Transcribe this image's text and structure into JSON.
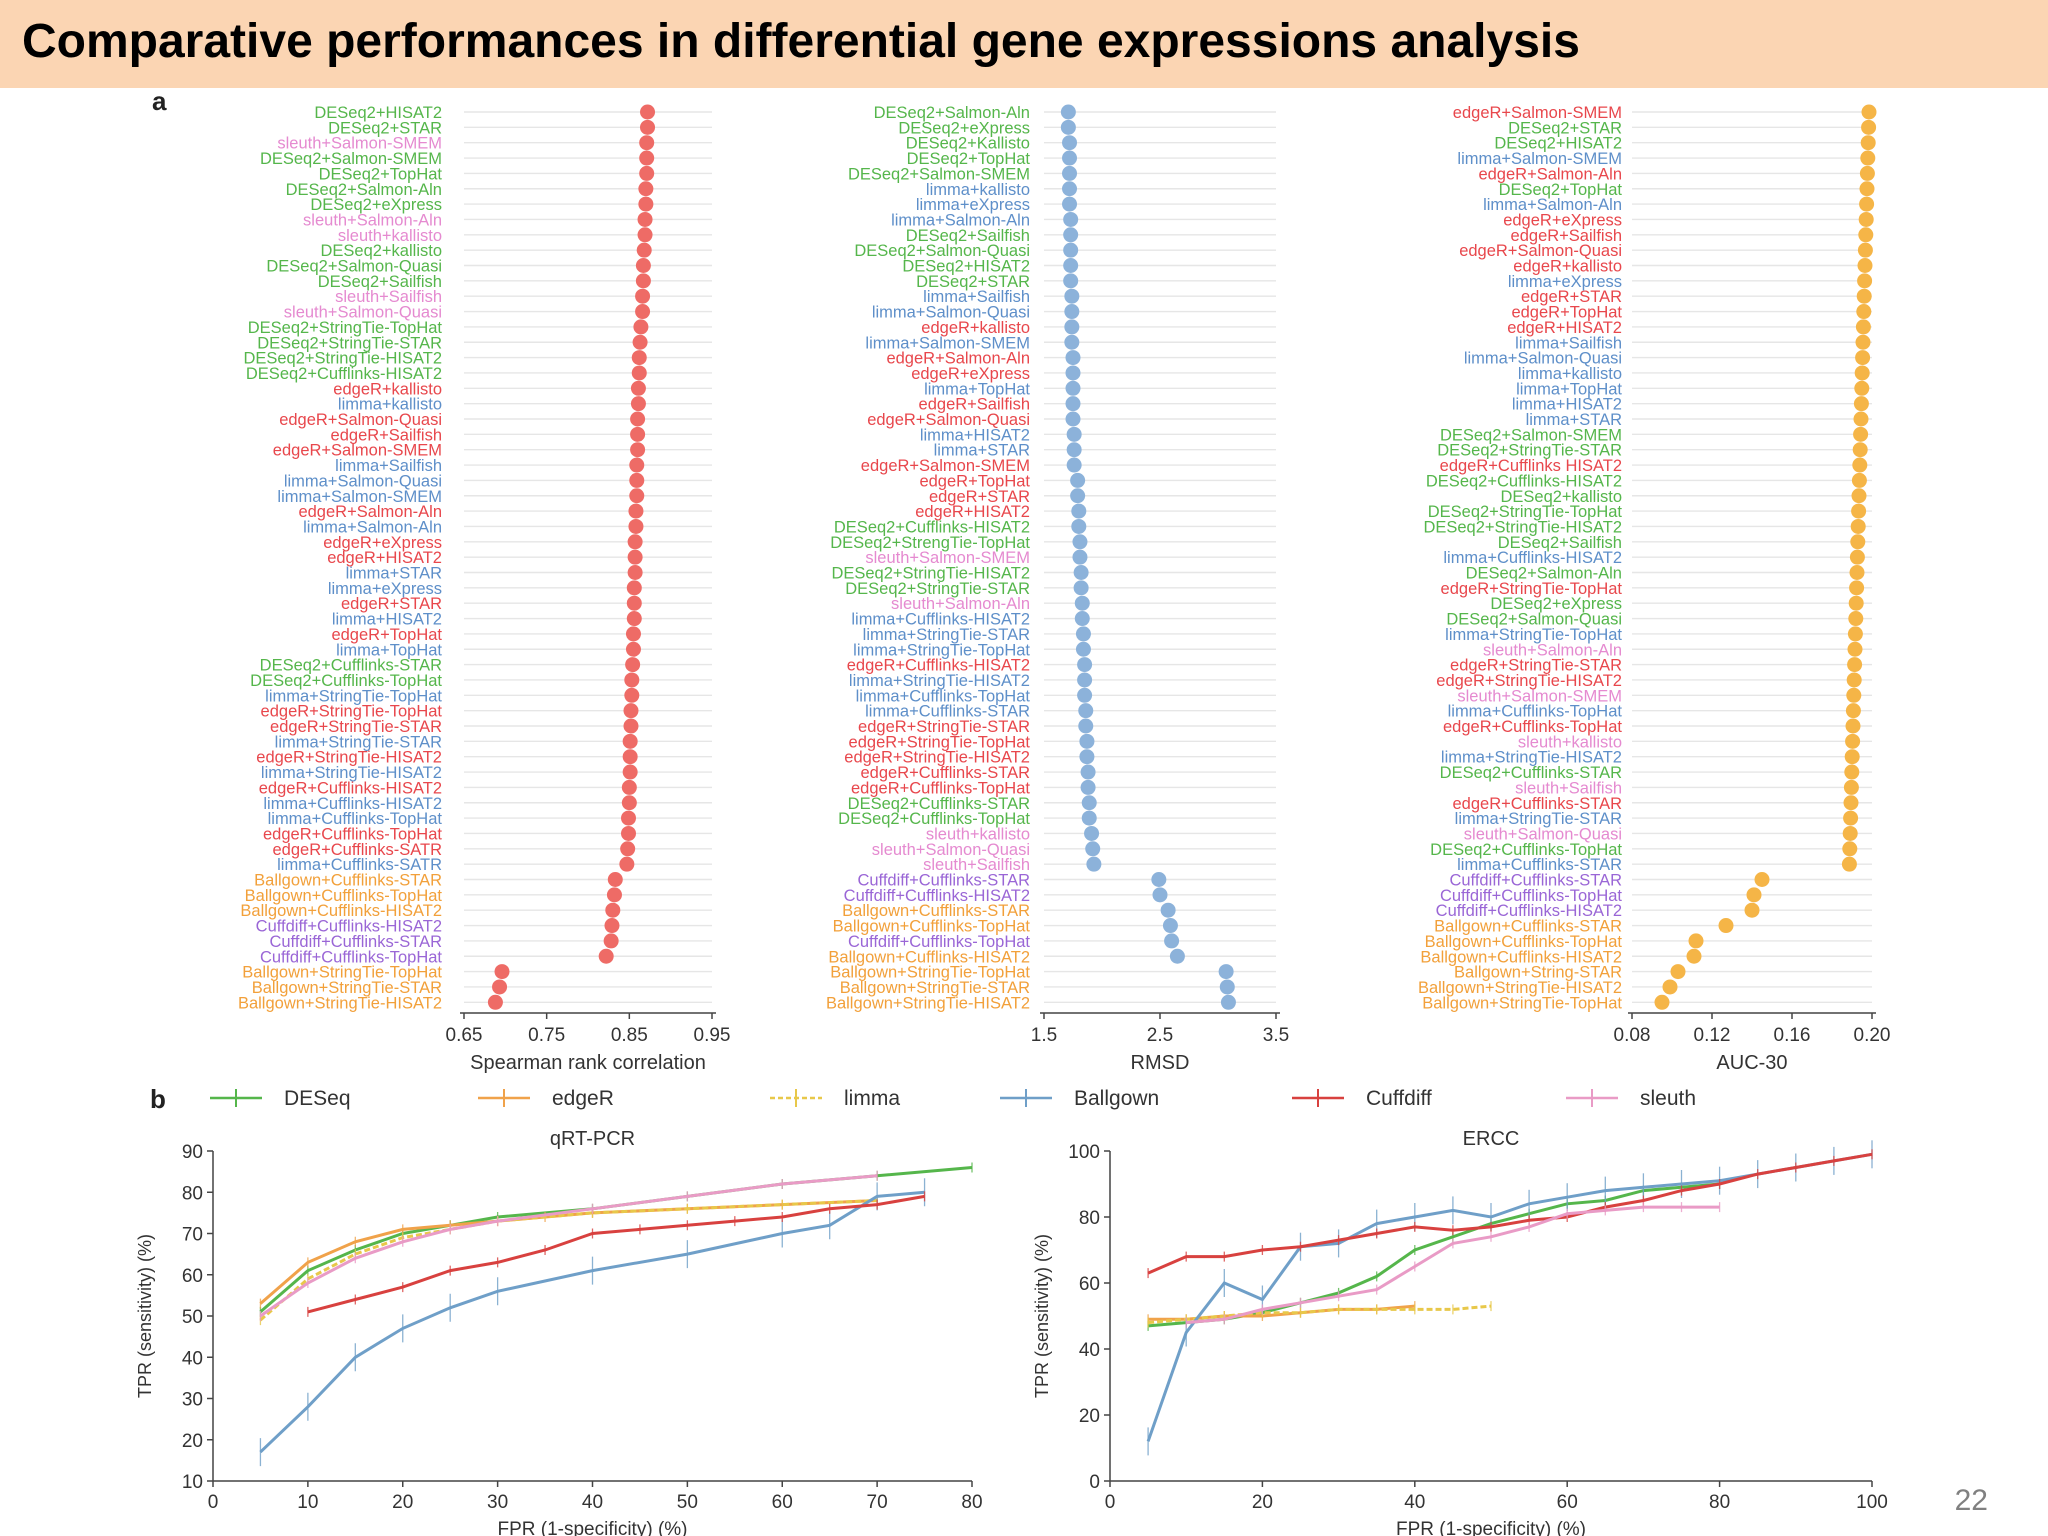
{
  "slide": {
    "title": "Comparative performances in differential gene expressions analysis",
    "page_number": "22"
  },
  "colors": {
    "DESeq": "#55b64b",
    "edgeR": "#e8474c",
    "limma": "#5e8fc9",
    "sleuth": "#e58ad0",
    "Ballgown": "#f2a03a",
    "Cuffdiff": "#9a66d6",
    "dot_spearman": "#ee6b66",
    "dot_rmsd": "#8cb2da",
    "dot_auc": "#f5b547"
  },
  "chart_data": [
    {
      "type": "scatter",
      "panel": "a",
      "xlabel": "Spearman rank correlation",
      "xlim": [
        0.65,
        0.95
      ],
      "xticks": [
        "0.65",
        "0.75",
        "0.85",
        "0.95"
      ],
      "labels": [
        "DESeq2+HISAT2",
        "DESeq2+STAR",
        "sleuth+Salmon-SMEM",
        "DESeq2+Salmon-SMEM",
        "DESeq2+TopHat",
        "DESeq2+Salmon-Aln",
        "DESeq2+eXpress",
        "sleuth+Salmon-Aln",
        "sleuth+kallisto",
        "DESeq2+kallisto",
        "DESeq2+Salmon-Quasi",
        "DESeq2+Sailfish",
        "sleuth+Sailfish",
        "sleuth+Salmon-Quasi",
        "DESeq2+StringTie-TopHat",
        "DESeq2+StringTie-STAR",
        "DESeq2+StringTie-HISAT2",
        "DESeq2+Cufflinks-HISAT2",
        "edgeR+kallisto",
        "limma+kallisto",
        "edgeR+Salmon-Quasi",
        "edgeR+Sailfish",
        "edgeR+Salmon-SMEM",
        "limma+Sailfish",
        "limma+Salmon-Quasi",
        "limma+Salmon-SMEM",
        "edgeR+Salmon-Aln",
        "limma+Salmon-Aln",
        "edgeR+eXpress",
        "edgeR+HISAT2",
        "limma+STAR",
        "limma+eXpress",
        "edgeR+STAR",
        "limma+HISAT2",
        "edgeR+TopHat",
        "limma+TopHat",
        "DESeq2+Cufflinks-STAR",
        "DESeq2+Cufflinks-TopHat",
        "limma+StringTie-TopHat",
        "edgeR+StringTie-TopHat",
        "edgeR+StringTie-STAR",
        "limma+StringTie-STAR",
        "edgeR+StringTie-HISAT2",
        "limma+StringTie-HISAT2",
        "edgeR+Cufflinks-HISAT2",
        "limma+Cufflinks-HISAT2",
        "limma+Cufflinks-TopHat",
        "edgeR+Cufflinks-TopHat",
        "edgeR+Cufflinks-SATR",
        "limma+Cufflinks-SATR",
        "Ballgown+Cufflinks-STAR",
        "Ballgown+Cufflinks-TopHat",
        "Ballgown+Cufflinks-HISAT2",
        "Cuffdiff+Cufflinks-HISAT2",
        "Cuffdiff+Cufflinks-STAR",
        "Cuffdiff+Cufflinks-TopHat",
        "Ballgown+StringTie-TopHat",
        "Ballgown+StringTie-STAR",
        "Ballgown+StringTie-HISAT2"
      ],
      "groups": [
        "DESeq",
        "DESeq",
        "sleuth",
        "DESeq",
        "DESeq",
        "DESeq",
        "DESeq",
        "sleuth",
        "sleuth",
        "DESeq",
        "DESeq",
        "DESeq",
        "sleuth",
        "sleuth",
        "DESeq",
        "DESeq",
        "DESeq",
        "DESeq",
        "edgeR",
        "limma",
        "edgeR",
        "edgeR",
        "edgeR",
        "limma",
        "limma",
        "limma",
        "edgeR",
        "limma",
        "edgeR",
        "edgeR",
        "limma",
        "limma",
        "edgeR",
        "limma",
        "edgeR",
        "limma",
        "DESeq",
        "DESeq",
        "limma",
        "edgeR",
        "edgeR",
        "limma",
        "edgeR",
        "limma",
        "edgeR",
        "limma",
        "limma",
        "edgeR",
        "edgeR",
        "limma",
        "Ballgown",
        "Ballgown",
        "Ballgown",
        "Cuffdiff",
        "Cuffdiff",
        "Cuffdiff",
        "Ballgown",
        "Ballgown",
        "Ballgown"
      ],
      "values": [
        0.872,
        0.872,
        0.871,
        0.871,
        0.871,
        0.87,
        0.87,
        0.869,
        0.869,
        0.868,
        0.867,
        0.867,
        0.866,
        0.866,
        0.864,
        0.863,
        0.862,
        0.862,
        0.861,
        0.861,
        0.86,
        0.86,
        0.86,
        0.859,
        0.859,
        0.859,
        0.858,
        0.858,
        0.857,
        0.857,
        0.857,
        0.856,
        0.856,
        0.856,
        0.855,
        0.855,
        0.854,
        0.853,
        0.853,
        0.852,
        0.852,
        0.851,
        0.851,
        0.851,
        0.85,
        0.85,
        0.849,
        0.849,
        0.848,
        0.847,
        0.833,
        0.832,
        0.83,
        0.829,
        0.828,
        0.822,
        0.696,
        0.693,
        0.688
      ]
    },
    {
      "type": "scatter",
      "panel": "a",
      "xlabel": "RMSD",
      "xlim": [
        1.5,
        3.5
      ],
      "xticks": [
        "1.5",
        "2.5",
        "3.5"
      ],
      "labels": [
        "DESeq2+Salmon-Aln",
        "DESeq2+eXpress",
        "DESeq2+Kallisto",
        "DESeq2+TopHat",
        "DESeq2+Salmon-SMEM",
        "limma+kallisto",
        "limma+eXpress",
        "limma+Salmon-Aln",
        "DESeq2+Sailfish",
        "DESeq2+Salmon-Quasi",
        "DESeq2+HISAT2",
        "DESeq2+STAR",
        "limma+Sailfish",
        "limma+Salmon-Quasi",
        "edgeR+kallisto",
        "limma+Salmon-SMEM",
        "edgeR+Salmon-Aln",
        "edgeR+eXpress",
        "limma+TopHat",
        "edgeR+Sailfish",
        "edgeR+Salmon-Quasi",
        "limma+HISAT2",
        "limma+STAR",
        "edgeR+Salmon-SMEM",
        "edgeR+TopHat",
        "edgeR+STAR",
        "edgeR+HISAT2",
        "DESeq2+Cufflinks-HISAT2",
        "DESeq2+StrengTie-TopHat",
        "sleuth+Salmon-SMEM",
        "DESeq2+StringTie-HISAT2",
        "DESeq2+StringTie-STAR",
        "sleuth+Salmon-Aln",
        "limma+Cufflinks-HISAT2",
        "limma+StringTie-STAR",
        "limma+StringTie-TopHat",
        "edgeR+Cufflinks-HISAT2",
        "limma+StringTie-HISAT2",
        "limma+Cufflinks-TopHat",
        "limma+Cufflinks-STAR",
        "edgeR+StringTie-STAR",
        "edgeR+StringTie-TopHat",
        "edgeR+StringTie-HISAT2",
        "edgeR+Cufflinks-STAR",
        "edgeR+Cufflinks-TopHat",
        "DESeq2+Cufflinks-STAR",
        "DESeq2+Cufflinks-TopHat",
        "sleuth+kallisto",
        "sleuth+Salmon-Quasi",
        "sleuth+Sailfish",
        "Cuffdiff+Cufflinks-STAR",
        "Cuffdiff+Cufflinks-HISAT2",
        "Ballgown+Cufflinks-STAR",
        "Ballgown+Cufflinks-TopHat",
        "Cuffdiff+Cufflinks-TopHat",
        "Ballgown+Cufflinks-HISAT2",
        "Ballgown+StringTie-TopHat",
        "Ballgown+StringTie-STAR",
        "Ballgown+StringTie-HISAT2"
      ],
      "groups": [
        "DESeq",
        "DESeq",
        "DESeq",
        "DESeq",
        "DESeq",
        "limma",
        "limma",
        "limma",
        "DESeq",
        "DESeq",
        "DESeq",
        "DESeq",
        "limma",
        "limma",
        "edgeR",
        "limma",
        "edgeR",
        "edgeR",
        "limma",
        "edgeR",
        "edgeR",
        "limma",
        "limma",
        "edgeR",
        "edgeR",
        "edgeR",
        "edgeR",
        "DESeq",
        "DESeq",
        "sleuth",
        "DESeq",
        "DESeq",
        "sleuth",
        "limma",
        "limma",
        "limma",
        "edgeR",
        "limma",
        "limma",
        "limma",
        "edgeR",
        "edgeR",
        "edgeR",
        "edgeR",
        "edgeR",
        "DESeq",
        "DESeq",
        "sleuth",
        "sleuth",
        "sleuth",
        "Cuffdiff",
        "Cuffdiff",
        "Ballgown",
        "Ballgown",
        "Cuffdiff",
        "Ballgown",
        "Ballgown",
        "Ballgown",
        "Ballgown"
      ],
      "values": [
        1.71,
        1.71,
        1.72,
        1.72,
        1.72,
        1.72,
        1.72,
        1.73,
        1.73,
        1.73,
        1.73,
        1.73,
        1.74,
        1.74,
        1.74,
        1.74,
        1.75,
        1.75,
        1.75,
        1.75,
        1.75,
        1.76,
        1.76,
        1.76,
        1.79,
        1.79,
        1.8,
        1.8,
        1.81,
        1.81,
        1.82,
        1.82,
        1.83,
        1.83,
        1.84,
        1.84,
        1.85,
        1.85,
        1.85,
        1.86,
        1.86,
        1.87,
        1.87,
        1.88,
        1.88,
        1.89,
        1.89,
        1.91,
        1.92,
        1.93,
        2.49,
        2.5,
        2.57,
        2.59,
        2.6,
        2.65,
        3.07,
        3.08,
        3.09
      ]
    },
    {
      "type": "scatter",
      "panel": "a",
      "xlabel": "AUC-30",
      "xlim": [
        0.08,
        0.2
      ],
      "xticks": [
        "0.08",
        "0.12",
        "0.16",
        "0.20"
      ],
      "labels": [
        "edgeR+Salmon-SMEM",
        "DESeq2+STAR",
        "DESeq2+HISAT2",
        "limma+Salmon-SMEM",
        "edgeR+Salmon-Aln",
        "DESeq2+TopHat",
        "limma+Salmon-Aln",
        "edgeR+eXpress",
        "edgeR+Sailfish",
        "edgeR+Salmon-Quasi",
        "edgeR+kallisto",
        "limma+eXpress",
        "edgeR+STAR",
        "edgeR+TopHat",
        "edgeR+HISAT2",
        "limma+Sailfish",
        "limma+Salmon-Quasi",
        "limma+kallisto",
        "limma+TopHat",
        "limma+HISAT2",
        "limma+STAR",
        "DESeq2+Salmon-SMEM",
        "DESeq2+StringTie-STAR",
        "edgeR+Cufflinks HISAT2",
        "DESeq2+Cufflinks-HISAT2",
        "DESeq2+kallisto",
        "DESeq2+StringTie-TopHat",
        "DESeq2+StringTie-HISAT2",
        "DESeq2+Sailfish",
        "limma+Cufflinks-HISAT2",
        "DESeq2+Salmon-Aln",
        "edgeR+StringTie-TopHat",
        "DESeq2+eXpress",
        "DESeq2+Salmon-Quasi",
        "limma+StringTie-TopHat",
        "sleuth+Salmon-Aln",
        "edgeR+StringTie-STAR",
        "edgeR+StringTie-HISAT2",
        "sleuth+Salmon-SMEM",
        "limma+Cufflinks-TopHat",
        "edgeR+Cufflinks-TopHat",
        "sleuth+kallisto",
        "limma+StringTie-HISAT2",
        "DESeq2+Cufflinks-STAR",
        "sleuth+Sailfish",
        "edgeR+Cufflinks-STAR",
        "limma+StringTie-STAR",
        "sleuth+Salmon-Quasi",
        "DESeq2+Cufflinks-TopHat",
        "limma+Cufflinks-STAR",
        "Cuffdiff+Cufflinks-STAR",
        "Cuffdiff+Cufflinks-TopHat",
        "Cuffdiff+Cufflinks-HISAT2",
        "Ballgown+Cufflinks-STAR",
        "Ballgown+Cufflinks-TopHat",
        "Ballgown+Cufflinks-HISAT2",
        "Ballgown+String-STAR",
        "Ballgown+StringTie-HISAT2",
        "Ballgown+StringTie-TopHat"
      ],
      "groups": [
        "edgeR",
        "DESeq",
        "DESeq",
        "limma",
        "edgeR",
        "DESeq",
        "limma",
        "edgeR",
        "edgeR",
        "edgeR",
        "edgeR",
        "limma",
        "edgeR",
        "edgeR",
        "edgeR",
        "limma",
        "limma",
        "limma",
        "limma",
        "limma",
        "limma",
        "DESeq",
        "DESeq",
        "edgeR",
        "DESeq",
        "DESeq",
        "DESeq",
        "DESeq",
        "DESeq",
        "limma",
        "DESeq",
        "edgeR",
        "DESeq",
        "DESeq",
        "limma",
        "sleuth",
        "edgeR",
        "edgeR",
        "sleuth",
        "limma",
        "edgeR",
        "sleuth",
        "limma",
        "DESeq",
        "sleuth",
        "edgeR",
        "limma",
        "sleuth",
        "DESeq",
        "limma",
        "Cuffdiff",
        "Cuffdiff",
        "Cuffdiff",
        "Ballgown",
        "Ballgown",
        "Ballgown",
        "Ballgown",
        "Ballgown",
        "Ballgown"
      ],
      "values": [
        0.1985,
        0.1983,
        0.1981,
        0.1979,
        0.1977,
        0.1975,
        0.1973,
        0.1971,
        0.1969,
        0.1967,
        0.1965,
        0.1963,
        0.1961,
        0.1959,
        0.1957,
        0.1955,
        0.1953,
        0.1951,
        0.1949,
        0.1947,
        0.1945,
        0.1943,
        0.1941,
        0.1939,
        0.1937,
        0.1935,
        0.1933,
        0.1931,
        0.1929,
        0.1927,
        0.1925,
        0.1923,
        0.1921,
        0.1919,
        0.1917,
        0.1915,
        0.1913,
        0.1911,
        0.1909,
        0.1907,
        0.1905,
        0.1903,
        0.1901,
        0.1899,
        0.1897,
        0.1895,
        0.1893,
        0.1891,
        0.1889,
        0.1887,
        0.145,
        0.141,
        0.14,
        0.127,
        0.112,
        0.111,
        0.103,
        0.099,
        0.095
      ]
    },
    {
      "type": "line",
      "panel": "b",
      "title": "qRT-PCR",
      "xlabel": "FPR (1-specificity) (%)",
      "ylabel": "TPR (sensitivity) (%)",
      "xlim": [
        0,
        80
      ],
      "ylim": [
        10,
        90
      ],
      "xticks": [
        "0",
        "10",
        "20",
        "30",
        "40",
        "50",
        "60",
        "70",
        "80"
      ],
      "yticks": [
        "10",
        "20",
        "30",
        "40",
        "50",
        "60",
        "70",
        "80",
        "90"
      ],
      "series": [
        {
          "name": "DESeq",
          "x": [
            5,
            10,
            15,
            20,
            25,
            30,
            40,
            50,
            60,
            70,
            80
          ],
          "y": [
            51,
            61,
            66,
            70,
            72,
            74,
            76,
            79,
            82,
            84,
            86
          ]
        },
        {
          "name": "edgeR",
          "x": [
            5,
            10,
            15,
            20,
            25,
            30,
            35,
            40,
            50,
            60,
            70
          ],
          "y": [
            53,
            63,
            68,
            71,
            72,
            73,
            74,
            75,
            76,
            77,
            78
          ]
        },
        {
          "name": "limma",
          "x": [
            5,
            10,
            15,
            20,
            25,
            30,
            40,
            50,
            60,
            70
          ],
          "y": [
            49,
            59,
            65,
            69,
            71,
            73,
            75,
            76,
            77,
            78
          ]
        },
        {
          "name": "Ballgown",
          "x": [
            5,
            10,
            15,
            20,
            25,
            30,
            40,
            50,
            60,
            65,
            70,
            75
          ],
          "y": [
            17,
            28,
            40,
            47,
            52,
            56,
            61,
            65,
            70,
            72,
            79,
            80
          ]
        },
        {
          "name": "Cuffdiff",
          "x": [
            10,
            15,
            20,
            25,
            30,
            35,
            40,
            45,
            50,
            55,
            60,
            65,
            70,
            75
          ],
          "y": [
            51,
            54,
            57,
            61,
            63,
            66,
            70,
            71,
            72,
            73,
            74,
            76,
            77,
            79
          ]
        },
        {
          "name": "sleuth",
          "x": [
            5,
            10,
            15,
            20,
            25,
            30,
            40,
            50,
            60,
            70
          ],
          "y": [
            50,
            58,
            64,
            68,
            71,
            73,
            76,
            79,
            82,
            84
          ]
        }
      ]
    },
    {
      "type": "line",
      "panel": "b",
      "title": "ERCC",
      "xlabel": "FPR (1-specificity) (%)",
      "ylabel": "TPR (sensitivity) (%)",
      "xlim": [
        0,
        100
      ],
      "ylim": [
        0,
        100
      ],
      "xticks": [
        "0",
        "20",
        "40",
        "60",
        "80",
        "100"
      ],
      "yticks": [
        "0",
        "20",
        "40",
        "60",
        "80",
        "100"
      ],
      "series": [
        {
          "name": "DESeq",
          "x": [
            5,
            10,
            15,
            20,
            25,
            30,
            35,
            40,
            45,
            50,
            55,
            60,
            65,
            70,
            75,
            80
          ],
          "y": [
            47,
            48,
            49,
            51,
            54,
            57,
            62,
            70,
            74,
            78,
            81,
            84,
            85,
            88,
            89,
            90
          ]
        },
        {
          "name": "edgeR",
          "x": [
            5,
            10,
            15,
            20,
            25,
            30,
            35,
            40
          ],
          "y": [
            49,
            49,
            50,
            50,
            51,
            52,
            52,
            53
          ]
        },
        {
          "name": "limma",
          "x": [
            5,
            10,
            15,
            20,
            25,
            30,
            35,
            40,
            45,
            50
          ],
          "y": [
            48,
            49,
            50,
            51,
            51,
            52,
            52,
            52,
            52,
            53
          ]
        },
        {
          "name": "Ballgown",
          "x": [
            5,
            10,
            15,
            20,
            25,
            30,
            35,
            40,
            45,
            50,
            55,
            60,
            65,
            70,
            75,
            80,
            85,
            90,
            95,
            100
          ],
          "y": [
            12,
            45,
            60,
            55,
            71,
            72,
            78,
            80,
            82,
            80,
            84,
            86,
            88,
            89,
            90,
            91,
            93,
            95,
            97,
            99
          ]
        },
        {
          "name": "Cuffdiff",
          "x": [
            5,
            10,
            15,
            20,
            25,
            30,
            35,
            40,
            45,
            50,
            55,
            60,
            65,
            70,
            75,
            80,
            85,
            90,
            95,
            100
          ],
          "y": [
            63,
            68,
            68,
            70,
            71,
            73,
            75,
            77,
            76,
            77,
            79,
            80,
            83,
            85,
            88,
            90,
            93,
            95,
            97,
            99
          ]
        },
        {
          "name": "sleuth",
          "x": [
            10,
            15,
            20,
            25,
            30,
            35,
            40,
            45,
            50,
            55,
            60,
            65,
            70,
            75,
            80
          ],
          "y": [
            48,
            49,
            52,
            54,
            56,
            58,
            65,
            72,
            74,
            77,
            81,
            82,
            83,
            83,
            83
          ]
        }
      ]
    }
  ],
  "legend_b": [
    "DESeq",
    "edgeR",
    "limma",
    "Ballgown",
    "Cuffdiff",
    "sleuth"
  ],
  "panel_labels": {
    "a": "a",
    "b": "b"
  }
}
